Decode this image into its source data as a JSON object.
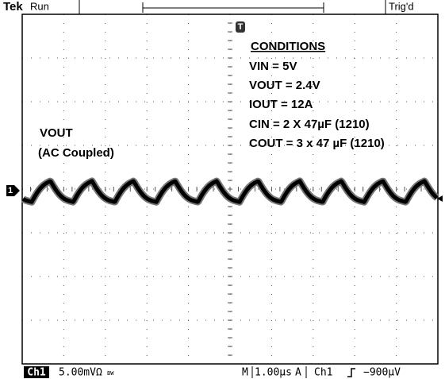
{
  "header": {
    "brand": "Tek",
    "status": "Run",
    "trigger_marker": "T",
    "trigger_status": "Trig'd"
  },
  "conditions": {
    "title": "CONDITIONS",
    "lines": [
      "VIN = 5V",
      "VOUT = 2.4V",
      "IOUT = 12A",
      "CIN = 2 X 47µF (1210)",
      "COUT = 3 x 47 µF (1210)"
    ]
  },
  "trace_label": [
    "VOUT",
    "(AC Coupled)"
  ],
  "channel_marker": "1",
  "footer": {
    "channel": "Ch1",
    "scale": "5.00mVΩ",
    "bandwidth": "BW",
    "timebase_mode": "M",
    "timebase": "1.00µs",
    "trigger_mode": "A",
    "trigger_source": "Ch1",
    "trigger_level": "−900µV"
  }
}
